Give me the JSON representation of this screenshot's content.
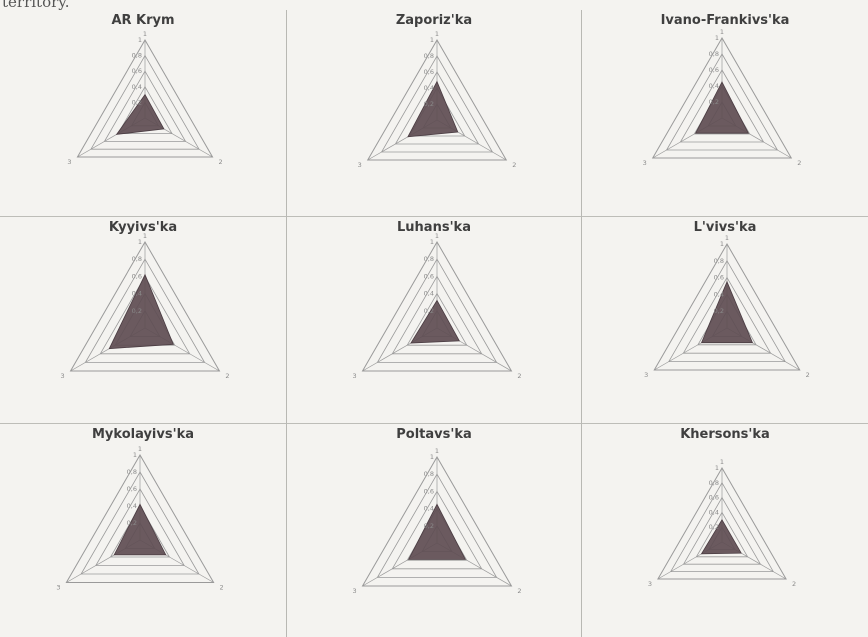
{
  "page": {
    "header_text": "territory."
  },
  "chart_data": [
    {
      "type": "radar",
      "title": "AR Krym",
      "axes": [
        "1",
        "2",
        "3"
      ],
      "ticks": [
        "0,2",
        "0,4",
        "0,6",
        "0,8",
        "1"
      ],
      "rlim": [
        0,
        1
      ],
      "values": [
        0.3,
        0.28,
        0.42
      ],
      "fill_color": "#5e4d53"
    },
    {
      "type": "radar",
      "title": "Zaporiz'ka",
      "axes": [
        "1",
        "2",
        "3"
      ],
      "ticks": [
        "0,2",
        "0,4",
        "0,6",
        "0,8",
        "1"
      ],
      "rlim": [
        0,
        1
      ],
      "values": [
        0.48,
        0.3,
        0.42
      ],
      "fill_color": "#5e4d53"
    },
    {
      "type": "radar",
      "title": "Ivano-Frankivs'ka",
      "axes": [
        "1",
        "2",
        "3"
      ],
      "ticks": [
        "0,2",
        "0,4",
        "0,6",
        "0,8",
        "1"
      ],
      "rlim": [
        0,
        1
      ],
      "values": [
        0.45,
        0.38,
        0.38
      ],
      "fill_color": "#5e4d53"
    },
    {
      "type": "radar",
      "title": "Kyyivs'ka",
      "axes": [
        "1",
        "2",
        "3"
      ],
      "ticks": [
        "0,2",
        "0,4",
        "0,6",
        "0,8",
        "1"
      ],
      "rlim": [
        0,
        1
      ],
      "values": [
        0.62,
        0.38,
        0.48
      ],
      "fill_color": "#5e4d53"
    },
    {
      "type": "radar",
      "title": "Luhans'ka",
      "axes": [
        "1",
        "2",
        "3"
      ],
      "ticks": [
        "0,2",
        "0,4",
        "0,6",
        "0,8",
        "1"
      ],
      "rlim": [
        0,
        1
      ],
      "values": [
        0.32,
        0.3,
        0.35
      ],
      "fill_color": "#5e4d53"
    },
    {
      "type": "radar",
      "title": "L'vivs'ka",
      "axes": [
        "1",
        "2",
        "3"
      ],
      "ticks": [
        "0,2",
        "0,4",
        "0,6",
        "0,8",
        "1"
      ],
      "rlim": [
        0,
        1
      ],
      "values": [
        0.55,
        0.35,
        0.35
      ],
      "fill_color": "#5e4d53"
    },
    {
      "type": "radar",
      "title": "Mykolayivs'ka",
      "axes": [
        "1",
        "2",
        "3"
      ],
      "ticks": [
        "0,2",
        "0,4",
        "0,6",
        "0,8",
        "1"
      ],
      "rlim": [
        0,
        1
      ],
      "values": [
        0.42,
        0.35,
        0.35
      ],
      "fill_color": "#5e4d53"
    },
    {
      "type": "radar",
      "title": "Poltavs'ka",
      "axes": [
        "1",
        "2",
        "3"
      ],
      "ticks": [
        "0,2",
        "0,4",
        "0,6",
        "0,8",
        "1"
      ],
      "rlim": [
        0,
        1
      ],
      "values": [
        0.45,
        0.38,
        0.38
      ],
      "fill_color": "#5e4d53"
    },
    {
      "type": "radar",
      "title": "Khersons'ka",
      "axes": [
        "1",
        "2",
        "3"
      ],
      "ticks": [
        "0,2",
        "0,4",
        "0,6",
        "0,8",
        "1"
      ],
      "rlim": [
        0,
        1
      ],
      "values": [
        0.3,
        0.3,
        0.32
      ],
      "fill_color": "#5e4d53"
    }
  ]
}
